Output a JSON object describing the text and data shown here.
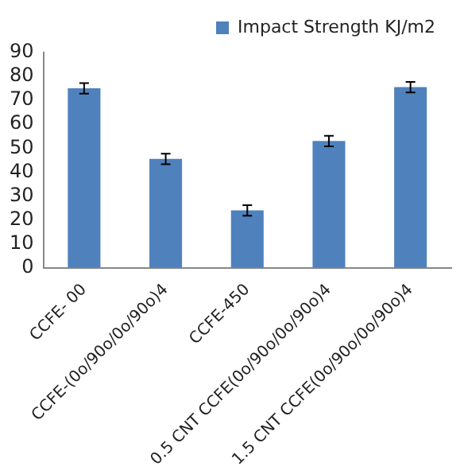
{
  "chart_data": {
    "type": "bar",
    "categories": [
      "CCFE- 00",
      "CCFE-(0o/90o/0o/90o)4",
      "CCFE-450",
      "0.5 CNT CCFE(0o/90o/0o/90o)4",
      "1.5 CNT CCFE(0o/90o/0o/90o)4"
    ],
    "series": [
      {
        "name": "Impact Strength KJ/m2",
        "color": "#4f81bd",
        "values": [
          75,
          45.5,
          24,
          53,
          75.5
        ],
        "errors": [
          2.2,
          2.2,
          2.2,
          2.2,
          2.2
        ]
      }
    ],
    "ylim": [
      0,
      90
    ],
    "yticks": [
      0,
      10,
      20,
      30,
      40,
      50,
      60,
      70,
      80,
      90
    ],
    "grid": false,
    "legend": "top"
  }
}
